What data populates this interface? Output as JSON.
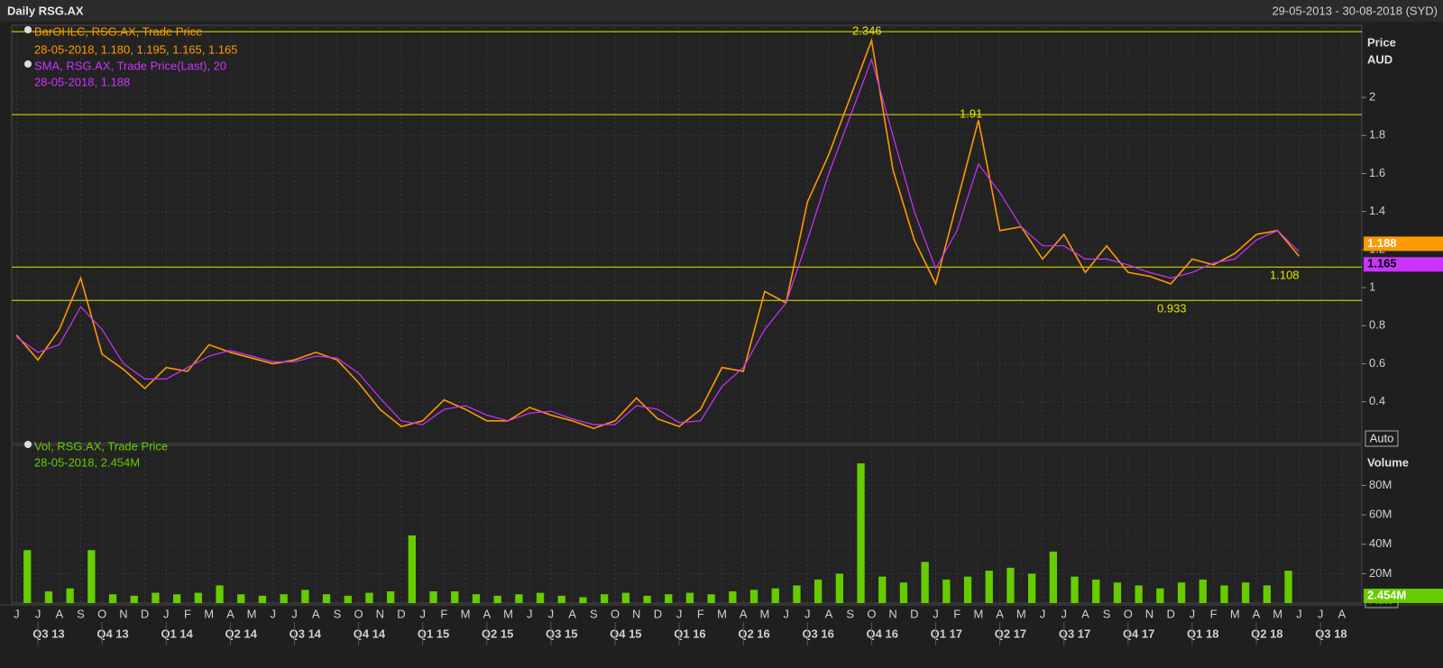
{
  "header": {
    "title": "Daily RSG.AX",
    "date_range": "29-05-2013 - 30-08-2018 (SYD)"
  },
  "time_axis": {
    "months": [
      "J",
      "J",
      "A",
      "S",
      "O",
      "N",
      "D",
      "J",
      "F",
      "M",
      "A",
      "M",
      "J",
      "J",
      "A",
      "S",
      "O",
      "N",
      "D",
      "J",
      "F",
      "M",
      "A",
      "M",
      "J",
      "J",
      "A",
      "S",
      "O",
      "N",
      "D",
      "J",
      "F",
      "M",
      "A",
      "M",
      "J",
      "J",
      "A",
      "S",
      "O",
      "N",
      "D",
      "J",
      "F",
      "M",
      "A",
      "M",
      "J",
      "J",
      "A",
      "S",
      "O",
      "N",
      "D",
      "J",
      "F",
      "M",
      "A",
      "M",
      "J",
      "J",
      "A"
    ],
    "quarters": [
      "Q3 13",
      "Q4 13",
      "Q1 14",
      "Q2 14",
      "Q3 14",
      "Q4 14",
      "Q1 15",
      "Q2 15",
      "Q3 15",
      "Q4 15",
      "Q1 16",
      "Q2 16",
      "Q3 16",
      "Q4 16",
      "Q1 17",
      "Q2 17",
      "Q3 17",
      "Q4 17",
      "Q1 18",
      "Q2 18",
      "Q3 18"
    ]
  },
  "chart_data": [
    {
      "type": "line",
      "x": [
        "2013-06",
        "2013-07",
        "2013-08",
        "2013-09",
        "2013-10",
        "2013-11",
        "2013-12",
        "2014-01",
        "2014-02",
        "2014-03",
        "2014-04",
        "2014-05",
        "2014-06",
        "2014-07",
        "2014-08",
        "2014-09",
        "2014-10",
        "2014-11",
        "2014-12",
        "2015-01",
        "2015-02",
        "2015-03",
        "2015-04",
        "2015-05",
        "2015-06",
        "2015-07",
        "2015-08",
        "2015-09",
        "2015-10",
        "2015-11",
        "2015-12",
        "2016-01",
        "2016-02",
        "2016-03",
        "2016-04",
        "2016-05",
        "2016-06",
        "2016-07",
        "2016-08",
        "2016-09",
        "2016-10",
        "2016-11",
        "2016-12",
        "2017-01",
        "2017-02",
        "2017-03",
        "2017-04",
        "2017-05",
        "2017-06",
        "2017-07",
        "2017-08",
        "2017-09",
        "2017-10",
        "2017-11",
        "2017-12",
        "2018-01",
        "2018-02",
        "2018-03",
        "2018-04",
        "2018-05",
        "2018-06"
      ],
      "series": [
        {
          "name": "BarOHLC, RSG.AX, Trade Price",
          "color": "#ff9900",
          "values": [
            0.75,
            0.62,
            0.78,
            1.05,
            0.65,
            0.57,
            0.47,
            0.58,
            0.56,
            0.7,
            0.66,
            0.63,
            0.6,
            0.62,
            0.66,
            0.62,
            0.5,
            0.36,
            0.27,
            0.3,
            0.41,
            0.36,
            0.3,
            0.3,
            0.37,
            0.33,
            0.3,
            0.26,
            0.3,
            0.42,
            0.31,
            0.27,
            0.36,
            0.58,
            0.56,
            0.98,
            0.92,
            1.45,
            1.7,
            2.0,
            2.3,
            1.62,
            1.25,
            1.02,
            1.45,
            1.88,
            1.3,
            1.32,
            1.15,
            1.28,
            1.08,
            1.22,
            1.08,
            1.06,
            1.02,
            1.15,
            1.12,
            1.18,
            1.28,
            1.3,
            1.165
          ]
        },
        {
          "name": "SMA, RSG.AX, Trade Price(Last),  20",
          "color": "#cc33ff",
          "values": [
            0.74,
            0.66,
            0.7,
            0.9,
            0.78,
            0.6,
            0.52,
            0.52,
            0.58,
            0.64,
            0.67,
            0.64,
            0.61,
            0.61,
            0.64,
            0.63,
            0.55,
            0.42,
            0.3,
            0.28,
            0.36,
            0.38,
            0.33,
            0.3,
            0.34,
            0.35,
            0.31,
            0.28,
            0.28,
            0.38,
            0.36,
            0.29,
            0.3,
            0.48,
            0.58,
            0.78,
            0.92,
            1.25,
            1.6,
            1.9,
            2.2,
            1.8,
            1.4,
            1.1,
            1.3,
            1.65,
            1.5,
            1.32,
            1.22,
            1.22,
            1.15,
            1.15,
            1.12,
            1.08,
            1.05,
            1.08,
            1.13,
            1.15,
            1.25,
            1.3,
            1.188
          ]
        }
      ],
      "legend_details": [
        "28-05-2018, 1.180, 1.195, 1.165, 1.165",
        "28-05-2018, 1.188"
      ],
      "y_axis_title": [
        "Price",
        "AUD"
      ],
      "ylim": [
        0.19,
        2.37
      ],
      "yticks": [
        0.4,
        0.6,
        0.8,
        1,
        1.2,
        1.4,
        1.6,
        1.8,
        2
      ],
      "reference_lines": [
        2.346,
        1.91,
        1.108,
        0.933
      ],
      "reference_color": "#e6e600",
      "last_values": [
        1.188,
        1.165
      ],
      "scale_mode": "Auto",
      "grid": true
    },
    {
      "type": "bar",
      "x": [
        "2013-06",
        "2013-07",
        "2013-08",
        "2013-09",
        "2013-10",
        "2013-11",
        "2013-12",
        "2014-01",
        "2014-02",
        "2014-03",
        "2014-04",
        "2014-05",
        "2014-06",
        "2014-07",
        "2014-08",
        "2014-09",
        "2014-10",
        "2014-11",
        "2014-12",
        "2015-01",
        "2015-02",
        "2015-03",
        "2015-04",
        "2015-05",
        "2015-06",
        "2015-07",
        "2015-08",
        "2015-09",
        "2015-10",
        "2015-11",
        "2015-12",
        "2016-01",
        "2016-02",
        "2016-03",
        "2016-04",
        "2016-05",
        "2016-06",
        "2016-07",
        "2016-08",
        "2016-09",
        "2016-10",
        "2016-11",
        "2016-12",
        "2017-01",
        "2017-02",
        "2017-03",
        "2017-04",
        "2017-05",
        "2017-06",
        "2017-07",
        "2017-08",
        "2017-09",
        "2017-10",
        "2017-11",
        "2017-12",
        "2018-01",
        "2018-02",
        "2018-03",
        "2018-04",
        "2018-05"
      ],
      "series": [
        {
          "name": "Vol, RSG.AX, Trade Price",
          "color": "#66cc00",
          "values": [
            36,
            8,
            10,
            36,
            6,
            5,
            7,
            6,
            7,
            12,
            6,
            5,
            6,
            9,
            6,
            5,
            7,
            8,
            46,
            8,
            8,
            6,
            5,
            6,
            7,
            5,
            4,
            6,
            7,
            5,
            6,
            7,
            6,
            8,
            9,
            10,
            12,
            16,
            20,
            95,
            18,
            14,
            28,
            16,
            18,
            22,
            24,
            20,
            35,
            18,
            16,
            14,
            12,
            10,
            14,
            16,
            12,
            14,
            12,
            22
          ]
        }
      ],
      "legend_details": [
        "28-05-2018, 2.454M"
      ],
      "y_axis_title": [
        "Volume"
      ],
      "ylim": [
        0,
        106
      ],
      "yticks": [
        {
          "value": 20,
          "label": "20M"
        },
        {
          "value": 40,
          "label": "40M"
        },
        {
          "value": 60,
          "label": "60M"
        },
        {
          "value": 80,
          "label": "80M"
        }
      ],
      "last_values": [
        2.454
      ],
      "last_value_labels": [
        "2.454M"
      ],
      "scale_mode": "Auto",
      "grid": true
    }
  ]
}
